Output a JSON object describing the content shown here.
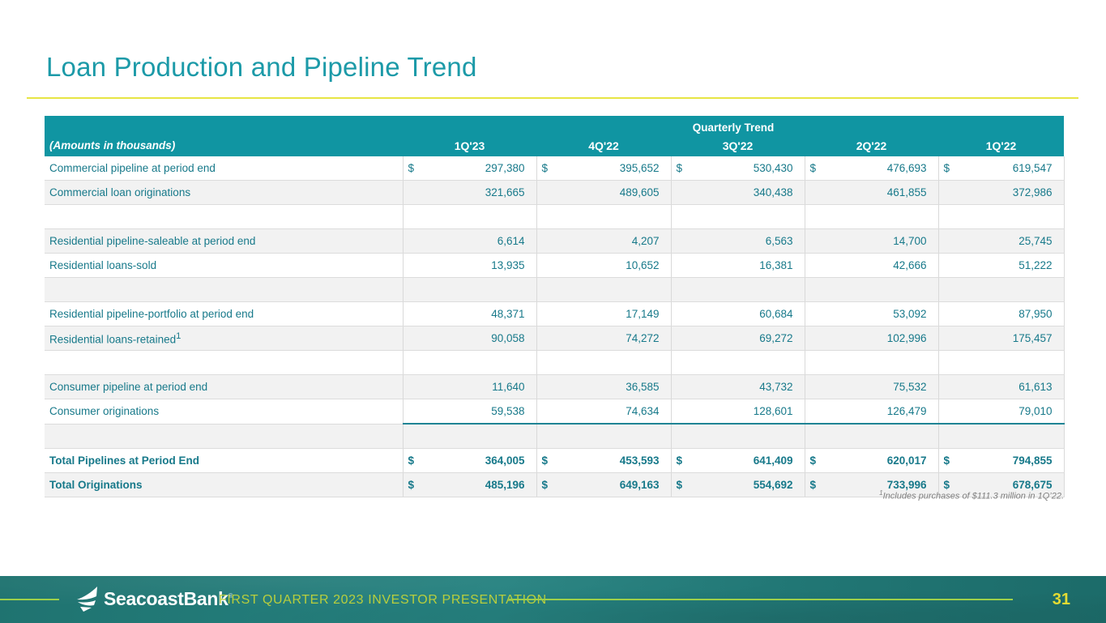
{
  "slide": {
    "title": "Loan Production and Pipeline Trend"
  },
  "table": {
    "group_header": "Quarterly Trend",
    "corner_label": "(Amounts in thousands)",
    "currency_symbol": "$",
    "columns": [
      "1Q'23",
      "4Q'22",
      "3Q'22",
      "2Q'22",
      "1Q'22"
    ],
    "rows": [
      {
        "label": "Commercial pipeline at period end",
        "dollar": true,
        "values": [
          "297,380",
          "395,652",
          "530,430",
          "476,693",
          "619,547"
        ]
      },
      {
        "label": "Commercial loan originations",
        "values": [
          "321,665",
          "489,605",
          "340,438",
          "461,855",
          "372,986"
        ]
      },
      {
        "blank": true
      },
      {
        "label": "Residential pipeline-saleable at period end",
        "values": [
          "6,614",
          "4,207",
          "6,563",
          "14,700",
          "25,745"
        ]
      },
      {
        "label": "Residential loans-sold",
        "values": [
          "13,935",
          "10,652",
          "16,381",
          "42,666",
          "51,222"
        ]
      },
      {
        "blank": true
      },
      {
        "label": "Residential pipeline-portfolio at period end",
        "values": [
          "48,371",
          "17,149",
          "60,684",
          "53,092",
          "87,950"
        ]
      },
      {
        "label": "Residential loans-retained",
        "sup": "1",
        "values": [
          "90,058",
          "74,272",
          "69,272",
          "102,996",
          "175,457"
        ]
      },
      {
        "blank": true
      },
      {
        "label": "Consumer pipeline at period end",
        "values": [
          "11,640",
          "36,585",
          "43,732",
          "75,532",
          "61,613"
        ]
      },
      {
        "label": "Consumer originations",
        "underline": true,
        "values": [
          "59,538",
          "74,634",
          "128,601",
          "126,479",
          "79,010"
        ]
      },
      {
        "blank": true
      },
      {
        "label": "Total Pipelines at Period End",
        "bold": true,
        "dollar": true,
        "values": [
          "364,005",
          "453,593",
          "641,409",
          "620,017",
          "794,855"
        ]
      },
      {
        "label": "Total Originations",
        "bold": true,
        "dollar": true,
        "values": [
          "485,196",
          "649,163",
          "554,692",
          "733,996",
          "678,675"
        ]
      }
    ]
  },
  "footnote": {
    "sup": "1",
    "text": "Includes purchases of $111.3 million in 1Q’22."
  },
  "footer": {
    "brand": "SeacoastBank",
    "brand_mark": "®",
    "presentation_title": "FIRST QUARTER 2023 INVESTOR PRESENTATION",
    "page_number": "31"
  },
  "colors": {
    "header_teal": "#1095A2",
    "title_teal": "#1C9AA8",
    "text_teal": "#17798A",
    "rule_yellow": "#E7E544",
    "underline_teal": "#1F8495",
    "shaded_row": "#F2F2F2",
    "footer_background": "#217A77",
    "footer_line_green": "#9ED04A",
    "footer_text_green": "#B8CE3D",
    "page_number_yellow": "#E3DB33"
  }
}
